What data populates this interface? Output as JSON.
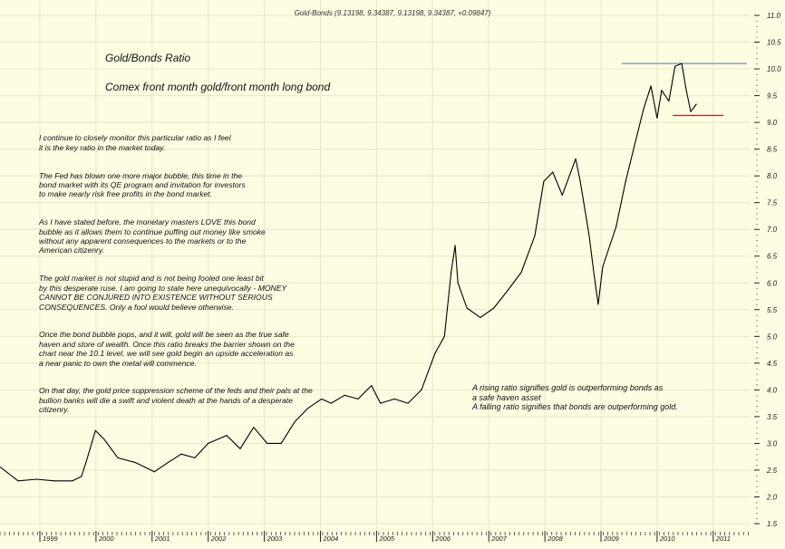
{
  "chart_data": {
    "type": "line",
    "header": "Gold-Bonds (9.13198, 9.34387, 9.13198, 9.34387, +0.09847)",
    "title": "Gold/Bonds Ratio",
    "subtitle": "Comex front month gold/front month long bond",
    "x_ticks": [
      "1999",
      "2000",
      "2001",
      "2002",
      "2003",
      "2004",
      "2005",
      "2006",
      "2007",
      "2008",
      "2009",
      "2010",
      "2011"
    ],
    "y_ticks": [
      "11.0",
      "10.5",
      "10.0",
      "9.5",
      "9.0",
      "8.5",
      "8.0",
      "7.5",
      "7.0",
      "6.5",
      "6.0",
      "5.5",
      "5.0",
      "4.5",
      "4.0",
      "3.5",
      "3.0",
      "2.5",
      "2.0",
      "1.5"
    ],
    "xlim": [
      1998.29,
      2011.6
    ],
    "ylim": [
      1.5,
      11.0
    ],
    "grid": true,
    "y_axis_side": "right",
    "series": [
      {
        "color": "#000000",
        "points": [
          [
            1998.29,
            2.56
          ],
          [
            1998.61,
            2.3
          ],
          [
            1998.94,
            2.33
          ],
          [
            1999.26,
            2.3
          ],
          [
            1999.58,
            2.3
          ],
          [
            1999.74,
            2.38
          ],
          [
            1999.82,
            2.64
          ],
          [
            1999.99,
            3.24
          ],
          [
            2000.15,
            3.07
          ],
          [
            2000.39,
            2.73
          ],
          [
            2000.71,
            2.64
          ],
          [
            2001.04,
            2.47
          ],
          [
            2001.28,
            2.64
          ],
          [
            2001.52,
            2.8
          ],
          [
            2001.76,
            2.73
          ],
          [
            2002.0,
            3.0
          ],
          [
            2002.33,
            3.15
          ],
          [
            2002.57,
            2.9
          ],
          [
            2002.81,
            3.3
          ],
          [
            2003.05,
            3.0
          ],
          [
            2003.3,
            3.0
          ],
          [
            2003.54,
            3.4
          ],
          [
            2003.78,
            3.66
          ],
          [
            2004.02,
            3.83
          ],
          [
            2004.19,
            3.75
          ],
          [
            2004.43,
            3.9
          ],
          [
            2004.67,
            3.83
          ],
          [
            2004.91,
            4.08
          ],
          [
            2005.07,
            3.75
          ],
          [
            2005.32,
            3.83
          ],
          [
            2005.56,
            3.75
          ],
          [
            2005.8,
            4.0
          ],
          [
            2006.04,
            4.68
          ],
          [
            2006.21,
            5.0
          ],
          [
            2006.33,
            6.2
          ],
          [
            2006.4,
            6.7
          ],
          [
            2006.45,
            6.0
          ],
          [
            2006.61,
            5.53
          ],
          [
            2006.85,
            5.35
          ],
          [
            2007.09,
            5.53
          ],
          [
            2007.34,
            5.86
          ],
          [
            2007.58,
            6.2
          ],
          [
            2007.82,
            6.88
          ],
          [
            2007.98,
            7.9
          ],
          [
            2008.14,
            8.07
          ],
          [
            2008.31,
            7.64
          ],
          [
            2008.55,
            8.32
          ],
          [
            2008.63,
            7.9
          ],
          [
            2008.79,
            6.88
          ],
          [
            2008.87,
            6.2
          ],
          [
            2008.95,
            5.6
          ],
          [
            2009.03,
            6.3
          ],
          [
            2009.27,
            7.05
          ],
          [
            2009.44,
            7.9
          ],
          [
            2009.6,
            8.58
          ],
          [
            2009.76,
            9.25
          ],
          [
            2009.89,
            9.68
          ],
          [
            2010.0,
            9.08
          ],
          [
            2010.08,
            9.6
          ],
          [
            2010.21,
            9.4
          ],
          [
            2010.32,
            10.05
          ],
          [
            2010.44,
            10.1
          ],
          [
            2010.52,
            9.6
          ],
          [
            2010.6,
            9.2
          ],
          [
            2010.7,
            9.34
          ]
        ]
      }
    ],
    "reference_lines": [
      {
        "name": "resistance",
        "value": 10.1,
        "from": 2009.37,
        "to": 2011.6,
        "color": "#7b83d6"
      },
      {
        "name": "support",
        "value": 9.13,
        "from": 2010.28,
        "to": 2011.18,
        "color": "#c0282d"
      }
    ],
    "annotations": {
      "commentary": [
        "I continue to closely monitor this particular ratio as I feel\nit is the key ratio in the market today.",
        "The Fed has blown one more major bubble, this time in the\nbond market with its QE program and invitation for investors\nto make nearly risk free profits in the bond market.",
        "As I have stated before, the monetary masters LOVE this bond\nbubble as it allows them to continue puffing out money like smoke\nwithout any apparent consequences to the markets or to the\nAmerican citizenry.",
        "The gold market is not stupid and is not being fooled one least bit\nby this desperate ruse. I am going to state here unequivocally - MONEY\nCANNOT BE CONJURED INTO EXISTENCE WITHOUT SERIOUS\nCONSEQUENCES. Only a fool would believe otherwise.",
        "Once the bond bubble pops, and it will, gold will be seen as the true safe\nhaven and store of wealth. Once this ratio breaks the barrier shown on the\nchart near the 10.1 level, we will see gold begin an upside acceleration as\na near panic to own the metal will commence.",
        "On that day, the gold price suppression scheme of the feds and their pals at the\nbullion banks will die a swift and violent death at the hands of a desperate\ncitizenry."
      ],
      "note": "A rising ratio signifies gold is outperforming bonds as\na safe haven asset\nA falling ratio signifies that bonds are outperforming gold."
    }
  }
}
